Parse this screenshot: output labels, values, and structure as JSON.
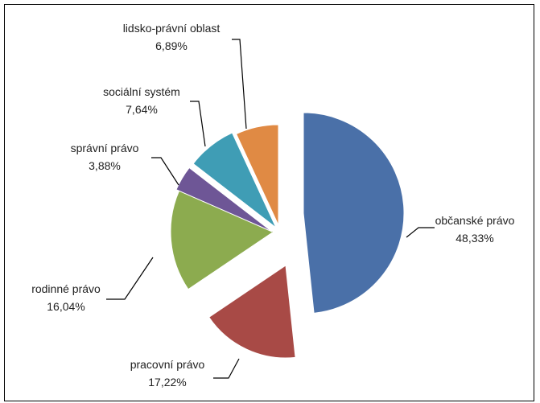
{
  "chart_data": {
    "type": "pie",
    "exploded": true,
    "slices": [
      {
        "label": "občanské právo",
        "value_text": "48,33%",
        "value": 48.33,
        "color": "#4A70A8"
      },
      {
        "label": "pracovní právo",
        "value_text": "17,22%",
        "value": 17.22,
        "color": "#A84A46"
      },
      {
        "label": "rodinné právo",
        "value_text": "16,04%",
        "value": 16.04,
        "color": "#8CAB4F"
      },
      {
        "label": "správní právo",
        "value_text": "3,88%",
        "value": 3.88,
        "color": "#6E5696"
      },
      {
        "label": "sociální systém",
        "value_text": "7,64%",
        "value": 7.64,
        "color": "#3F9DB5"
      },
      {
        "label": "lidsko-právní oblast",
        "value_text": "6,89%",
        "value": 6.89,
        "color": "#E08A44"
      }
    ]
  }
}
